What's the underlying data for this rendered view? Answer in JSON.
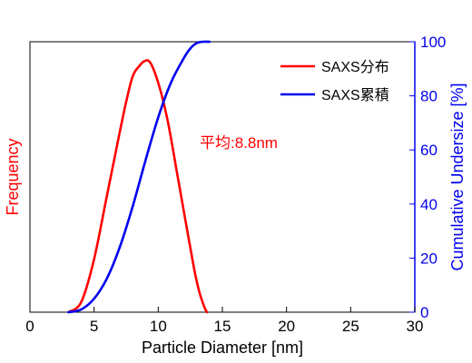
{
  "chart_data": {
    "type": "line",
    "xlabel": "Particle Diameter [nm]",
    "ylabel_left": "Frequency",
    "ylabel_right": "Cumulative Undersize [%]",
    "xlim": [
      0,
      30
    ],
    "xticks": [
      0,
      5,
      10,
      15,
      20,
      25,
      30
    ],
    "ylim_right": [
      0,
      100
    ],
    "yticks_right": [
      0,
      20,
      40,
      60,
      80,
      100
    ],
    "ylim_left": [
      0,
      1
    ],
    "grid": false,
    "legend_position": "top-right",
    "annotation": "平均:8.8nm",
    "series": [
      {
        "name": "SAXS分布",
        "color": "#ff0000",
        "axis": "left",
        "x": [
          3.0,
          4.0,
          5.0,
          6.0,
          7.0,
          7.5,
          8.0,
          8.5,
          8.9,
          9.3,
          9.7,
          10.2,
          10.8,
          11.5,
          12.2,
          12.8,
          13.2,
          13.6,
          13.8
        ],
        "y": [
          0.0,
          0.04,
          0.21,
          0.46,
          0.71,
          0.83,
          0.93,
          0.97,
          0.99,
          0.99,
          0.95,
          0.87,
          0.74,
          0.54,
          0.34,
          0.17,
          0.08,
          0.02,
          0.0
        ]
      },
      {
        "name": "SAXS累積",
        "color": "#0000ee",
        "axis": "right",
        "x": [
          3.0,
          4.0,
          5.0,
          6.0,
          7.0,
          8.0,
          9.0,
          10.0,
          11.0,
          12.0,
          12.5,
          13.0,
          13.5,
          14.0
        ],
        "y": [
          0.0,
          1.0,
          5.0,
          12.5,
          24.0,
          39.0,
          56.0,
          72.0,
          85.0,
          94.0,
          97.5,
          99.5,
          100.0,
          100.0
        ]
      }
    ]
  }
}
